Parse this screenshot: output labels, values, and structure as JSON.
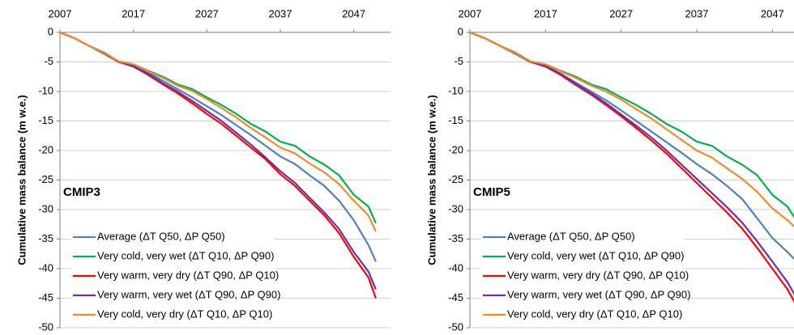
{
  "chart_data": [
    {
      "type": "line",
      "annotation": "CMIP3",
      "ylabel": "Cumulative mass balance (m w.e.)",
      "x": [
        2007,
        2009,
        2011,
        2013,
        2015,
        2017,
        2019,
        2021,
        2023,
        2025,
        2027,
        2029,
        2031,
        2033,
        2035,
        2037,
        2039,
        2041,
        2043,
        2045,
        2047,
        2049,
        2050
      ],
      "series": [
        {
          "name": "Average (ΔT Q50, ΔP Q50)",
          "color": "#4f81bd",
          "values": [
            0,
            -1,
            -2.3,
            -3.5,
            -5,
            -5.6,
            -6.8,
            -8.2,
            -9.6,
            -11,
            -12.5,
            -14,
            -15.7,
            -17.4,
            -19.2,
            -21,
            -22.3,
            -24.2,
            -26,
            -28.5,
            -31.8,
            -36,
            -38.8
          ]
        },
        {
          "name": "Very cold, very wet (ΔT Q10, ΔP Q90)",
          "color": "#00b050",
          "values": [
            0,
            -1,
            -2.3,
            -3.4,
            -4.9,
            -5.4,
            -6.5,
            -7.5,
            -8.8,
            -9.6,
            -11,
            -12.3,
            -13.8,
            -15.5,
            -16.8,
            -18.5,
            -19.2,
            -21,
            -22.4,
            -24.2,
            -27.5,
            -29.5,
            -32.3
          ]
        },
        {
          "name": "Very warm, very dry (ΔT Q90, ΔP Q10)",
          "color": "#ff0000",
          "values": [
            0,
            -1,
            -2.3,
            -3.6,
            -5,
            -5.8,
            -7.2,
            -8.8,
            -10.3,
            -12,
            -13.8,
            -15.5,
            -17.5,
            -19.5,
            -21.5,
            -24,
            -26,
            -28.5,
            -31,
            -34,
            -38,
            -41.5,
            -45
          ]
        },
        {
          "name": "Very warm, very wet (ΔT Q90, ΔP Q90)",
          "color": "#7030a0",
          "values": [
            0,
            -1,
            -2.3,
            -3.6,
            -5,
            -5.7,
            -7,
            -8.6,
            -10,
            -11.6,
            -13.3,
            -15,
            -17,
            -19,
            -21.2,
            -23.5,
            -25.5,
            -28,
            -30.5,
            -33.3,
            -37.2,
            -40.5,
            -43.5
          ]
        },
        {
          "name": "Very cold, very dry (ΔT Q10, ΔP Q10)",
          "color": "#f08c28",
          "values": [
            0,
            -1,
            -2.3,
            -3.5,
            -4.9,
            -5.4,
            -6.6,
            -7.7,
            -9,
            -9.9,
            -11.3,
            -12.8,
            -14.4,
            -16.2,
            -17.8,
            -19.5,
            -20.5,
            -22.2,
            -23.7,
            -25.7,
            -28.5,
            -31,
            -33.7
          ]
        }
      ],
      "xlim": [
        2007,
        2052
      ],
      "ylim": [
        -50,
        0
      ],
      "xticks": [
        2007,
        2017,
        2027,
        2037,
        2047
      ],
      "yticks": [
        0,
        -5,
        -10,
        -15,
        -20,
        -25,
        -30,
        -35,
        -40,
        -45,
        -50
      ],
      "grid": true,
      "legend": "lower left"
    },
    {
      "type": "line",
      "annotation": "CMIP5",
      "ylabel": "Cumulative mass balance (m w.e.)",
      "x": [
        2007,
        2009,
        2011,
        2013,
        2015,
        2017,
        2019,
        2021,
        2023,
        2025,
        2027,
        2029,
        2031,
        2033,
        2035,
        2037,
        2039,
        2041,
        2043,
        2045,
        2047,
        2049,
        2050
      ],
      "series": [
        {
          "name": "Average (ΔT Q50, ΔP Q50)",
          "color": "#4f81bd",
          "values": [
            0,
            -1,
            -2.3,
            -3.5,
            -5,
            -5.7,
            -7,
            -8.5,
            -10,
            -11.5,
            -13.2,
            -15,
            -16.8,
            -18.6,
            -20.4,
            -22.3,
            -24,
            -26,
            -28.2,
            -31.5,
            -34.8,
            -37.2,
            -38.5
          ]
        },
        {
          "name": "Very cold, very wet (ΔT Q10, ΔP Q90)",
          "color": "#00b050",
          "values": [
            0,
            -1,
            -2.3,
            -3.4,
            -4.9,
            -5.4,
            -6.5,
            -7.5,
            -8.8,
            -9.6,
            -11,
            -12.3,
            -13.8,
            -15.5,
            -16.8,
            -18.5,
            -19.2,
            -21,
            -22.4,
            -24.2,
            -27.5,
            -29.5,
            -31.5
          ]
        },
        {
          "name": "Very warm, very dry (ΔT Q90, ΔP Q10)",
          "color": "#ff0000",
          "values": [
            0,
            -1,
            -2.3,
            -3.6,
            -5,
            -5.8,
            -7.2,
            -8.9,
            -10.5,
            -12.3,
            -14.2,
            -16.2,
            -18.3,
            -20.5,
            -23,
            -25.5,
            -28,
            -30.5,
            -33.2,
            -36.5,
            -40,
            -43.5,
            -45.8
          ]
        },
        {
          "name": "Very warm, very wet (ΔT Q90, ΔP Q90)",
          "color": "#7030a0",
          "values": [
            0,
            -1,
            -2.3,
            -3.6,
            -5,
            -5.7,
            -7,
            -8.7,
            -10.3,
            -12,
            -13.9,
            -15.8,
            -17.8,
            -20,
            -22.4,
            -24.8,
            -27.2,
            -29.6,
            -32.2,
            -35.4,
            -38.8,
            -42.3,
            -44.5
          ]
        },
        {
          "name": "Very cold, very dry (ΔT Q10, ΔP Q10)",
          "color": "#f08c28",
          "values": [
            0,
            -1,
            -2.3,
            -3.5,
            -4.9,
            -5.4,
            -6.6,
            -7.7,
            -9,
            -10,
            -11.4,
            -13,
            -14.6,
            -16.4,
            -18.2,
            -20,
            -21.2,
            -23,
            -24.8,
            -27,
            -29.8,
            -31.8,
            -33
          ]
        }
      ],
      "xlim": [
        2007,
        2052
      ],
      "ylim": [
        -50,
        0
      ],
      "xticks": [
        2007,
        2017,
        2027,
        2037,
        2047
      ],
      "yticks": [
        0,
        -5,
        -10,
        -15,
        -20,
        -25,
        -30,
        -35,
        -40,
        -45,
        -50
      ],
      "grid": true,
      "legend": "lower left"
    }
  ]
}
